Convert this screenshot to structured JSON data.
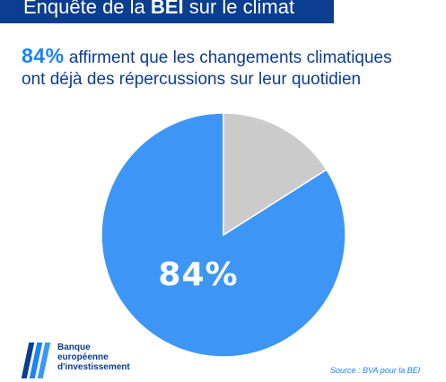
{
  "header": {
    "title_prefix": "Enquête de la ",
    "title_bold": "BEI",
    "title_suffix": " sur le climat"
  },
  "headline": {
    "highlight": "84%",
    "line1_text": " affirment que les changements climatiques",
    "line2_text": "ont déjà des répercussions sur leur quotidien"
  },
  "chart_data": {
    "type": "pie",
    "title": "",
    "slices": [
      {
        "name": "",
        "value": 84,
        "color": "#3d96f5"
      },
      {
        "name": "",
        "value": 16,
        "color": "#cbcbcb"
      }
    ],
    "data_label": "84%"
  },
  "footer": {
    "organization": "Banque\neuropéenne\nd'investissement",
    "source": "Source : BVA pour la BEI",
    "logo_colors": [
      "#0b3d91",
      "#1a83f5",
      "#3d96f5"
    ]
  }
}
